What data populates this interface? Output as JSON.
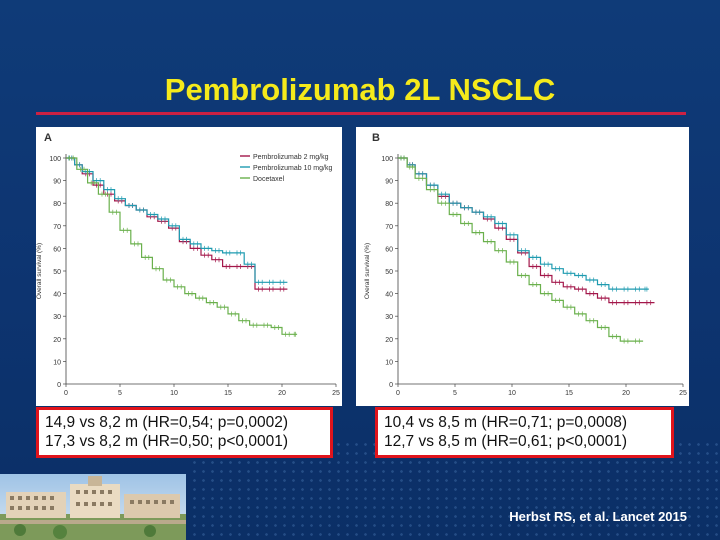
{
  "slide": {
    "title": "Pembrolizumab 2L NSCLC",
    "citation": "Herbst RS, et al. Lancet 2015"
  },
  "colors": {
    "title": "#f5ea1b",
    "rule": "#cc2143",
    "box_border": "#e0141c",
    "background": "#0f3b78"
  },
  "chart_data": [
    {
      "type": "line",
      "panel_label": "A",
      "ylabel": "Overall survival (%)",
      "xlim": [
        0,
        25
      ],
      "ylim": [
        0,
        100
      ],
      "x_ticks": [
        "0",
        "5",
        "10",
        "15",
        "20",
        "25"
      ],
      "y_ticks": [
        "0",
        "10",
        "20",
        "30",
        "40",
        "50",
        "60",
        "70",
        "80",
        "90",
        "100"
      ],
      "legend_position": "top-right",
      "series": [
        {
          "name": "Pembrolizumab 2 mg/kg",
          "color": "#a3174a",
          "x": [
            0,
            0.8,
            1.5,
            2.5,
            3.5,
            4.5,
            5.5,
            6.5,
            7.5,
            8.5,
            9.5,
            10.5,
            11.5,
            12.5,
            13.5,
            14.5,
            15.5,
            16.5,
            17.5,
            18.5,
            19.5,
            20.5
          ],
          "y": [
            100,
            97,
            93,
            88,
            84,
            81,
            79,
            77,
            74,
            72,
            69,
            63,
            60,
            57,
            55,
            52,
            52,
            52,
            42,
            42,
            42,
            42
          ]
        },
        {
          "name": "Pembrolizumab 10 mg/kg",
          "color": "#1f9bb0",
          "x": [
            0,
            0.8,
            1.5,
            2.5,
            3.5,
            4.5,
            5.5,
            6.5,
            7.5,
            8.5,
            9.5,
            10.5,
            11.5,
            12.5,
            13.5,
            14.5,
            15.5,
            16.5,
            17.5,
            18.5,
            19.5,
            20.5
          ],
          "y": [
            100,
            97,
            94,
            90,
            86,
            82,
            79,
            77,
            75,
            73,
            70,
            64,
            62,
            60,
            59,
            58,
            58,
            53,
            45,
            45,
            45,
            45
          ]
        },
        {
          "name": "Docetaxel",
          "color": "#6ab04c",
          "x": [
            0,
            1,
            2,
            3,
            4,
            5,
            6,
            7,
            8,
            9,
            10,
            11,
            12,
            13,
            14,
            15,
            16,
            17,
            18,
            19,
            20,
            21,
            21.4
          ],
          "y": [
            100,
            95,
            89,
            84,
            76,
            68,
            62,
            56,
            51,
            46,
            43,
            40,
            38,
            36,
            34,
            31,
            28,
            26,
            26,
            25,
            22,
            22,
            22
          ]
        }
      ]
    },
    {
      "type": "line",
      "panel_label": "B",
      "ylabel": "Overall survival (%)",
      "xlim": [
        0,
        25
      ],
      "ylim": [
        0,
        100
      ],
      "x_ticks": [
        "0",
        "5",
        "10",
        "15",
        "20",
        "25"
      ],
      "y_ticks": [
        "0",
        "10",
        "20",
        "30",
        "40",
        "50",
        "60",
        "70",
        "80",
        "90",
        "100"
      ],
      "series": [
        {
          "name": "",
          "color": "#a3174a",
          "x": [
            0,
            0.8,
            1.5,
            2.5,
            3.5,
            4.5,
            5.5,
            6.5,
            7.5,
            8.5,
            9.5,
            10.5,
            11.5,
            12.5,
            13.5,
            14.5,
            15.5,
            16.5,
            17.5,
            18.5,
            19.5,
            20.5,
            21.5,
            22.5
          ],
          "y": [
            100,
            97,
            93,
            88,
            83,
            80,
            78,
            76,
            73,
            69,
            64,
            58,
            52,
            48,
            45,
            43,
            42,
            40,
            38,
            36,
            36,
            36,
            36,
            36
          ]
        },
        {
          "name": "",
          "color": "#1f9bb0",
          "x": [
            0,
            0.8,
            1.5,
            2.5,
            3.5,
            4.5,
            5.5,
            6.5,
            7.5,
            8.5,
            9.5,
            10.5,
            11.5,
            12.5,
            13.5,
            14.5,
            15.5,
            16.5,
            17.5,
            18.5,
            19.5,
            20.5,
            21.5,
            22
          ],
          "y": [
            100,
            97,
            93,
            88,
            84,
            80,
            78,
            76,
            74,
            71,
            66,
            59,
            56,
            53,
            51,
            49,
            48,
            46,
            44,
            42,
            42,
            42,
            42,
            42
          ]
        },
        {
          "name": "",
          "color": "#6ab04c",
          "x": [
            0,
            0.8,
            1.5,
            2.5,
            3.5,
            4.5,
            5.5,
            6.5,
            7.5,
            8.5,
            9.5,
            10.5,
            11.5,
            12.5,
            13.5,
            14.5,
            15.5,
            16.5,
            17.5,
            18.5,
            19.5,
            20.5,
            21.5
          ],
          "y": [
            100,
            96,
            91,
            86,
            80,
            75,
            71,
            67,
            63,
            59,
            54,
            48,
            44,
            40,
            37,
            34,
            31,
            28,
            25,
            21,
            19,
            19,
            19
          ]
        }
      ]
    }
  ],
  "stat_boxes": [
    {
      "line1": "14,9 vs 8,2 m (HR=0,54; p=0,0002)",
      "line2": "17,3 vs 8,2 m (HR=0,50; p<0,0001)"
    },
    {
      "line1": "10,4 vs 8,5 m (HR=0,71; p=0,0008)",
      "line2": "12,7 vs 8,5 m (HR=0,61; p<0,0001)"
    }
  ],
  "photo": {
    "icon": "hospital-building-photo"
  }
}
